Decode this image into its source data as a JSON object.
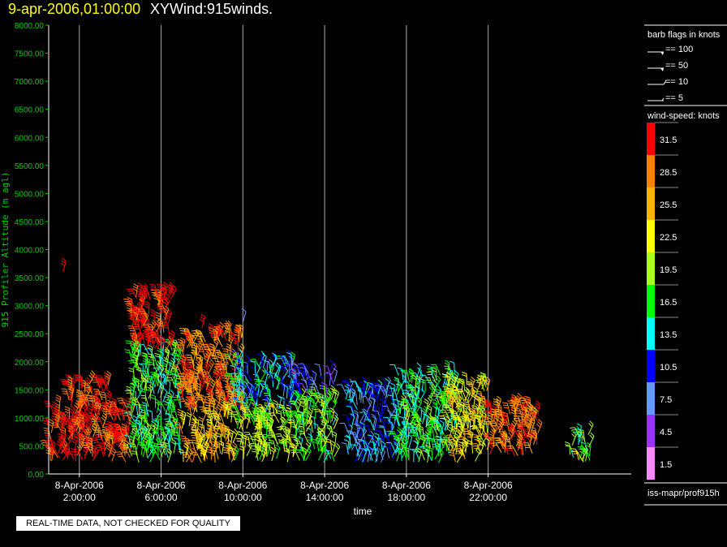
{
  "header": {
    "time": "9-apr-2006,01:00:00",
    "title": "XYWind:915winds."
  },
  "colors": {
    "axis": "#00cc00",
    "grid": "#aaaaaa",
    "background": "#000000"
  },
  "chart_data": {
    "type": "scatter",
    "title": "XYWind:915winds.",
    "xlabel": "time",
    "ylabel": "915 Profiler Altitude (m agl)",
    "ylim": [
      0,
      8000
    ],
    "yticks": [
      "0.00",
      "500.00",
      "1000.00",
      "1500.00",
      "2000.00",
      "2500.00",
      "3000.00",
      "3500.00",
      "4000.00",
      "4500.00",
      "5000.00",
      "5500.00",
      "6000.00",
      "6500.00",
      "7000.00",
      "7500.00",
      "8000.00"
    ],
    "xlim_hours": [
      0,
      30
    ],
    "xticks": [
      {
        "hour": 2,
        "date": "8-Apr-2006",
        "time": "2:00:00"
      },
      {
        "hour": 6,
        "date": "8-Apr-2006",
        "time": "6:00:00"
      },
      {
        "hour": 10,
        "date": "8-Apr-2006",
        "time": "10:00:00"
      },
      {
        "hour": 14,
        "date": "8-Apr-2006",
        "time": "14:00:00"
      },
      {
        "hour": 18,
        "date": "8-Apr-2006",
        "time": "18:00:00"
      },
      {
        "hour": 22,
        "date": "8-Apr-2006",
        "time": "22:00:00"
      }
    ],
    "grid": "vertical",
    "wind_clusters": [
      {
        "t_start": 0.5,
        "t_end": 2.5,
        "z_min": 200,
        "z_max": 1200,
        "speed": 31
      },
      {
        "t_start": 2.5,
        "t_end": 4.5,
        "z_min": 200,
        "z_max": 1200,
        "speed": 30
      },
      {
        "t_start": 1.5,
        "t_end": 3.5,
        "z_min": 1200,
        "z_max": 1600,
        "speed": 30
      },
      {
        "t_start": 4.5,
        "t_end": 7.0,
        "z_min": 200,
        "z_max": 2200,
        "speed": 17
      },
      {
        "t_start": 4.5,
        "t_end": 6.5,
        "z_min": 2200,
        "z_max": 3200,
        "speed": 31
      },
      {
        "t_start": 7.0,
        "t_end": 9.5,
        "z_min": 200,
        "z_max": 1100,
        "speed": 25
      },
      {
        "t_start": 7.0,
        "t_end": 10.0,
        "z_min": 1100,
        "z_max": 2500,
        "speed": 28
      },
      {
        "t_start": 9.5,
        "t_end": 12.5,
        "z_min": 200,
        "z_max": 1100,
        "speed": 20
      },
      {
        "t_start": 9.5,
        "t_end": 12.5,
        "z_min": 1100,
        "z_max": 2000,
        "speed": 12
      },
      {
        "t_start": 12.5,
        "t_end": 14.5,
        "z_min": 200,
        "z_max": 1400,
        "speed": 18
      },
      {
        "t_start": 12.5,
        "t_end": 14.5,
        "z_min": 1400,
        "z_max": 1800,
        "speed": 8
      },
      {
        "t_start": 15.0,
        "t_end": 17.5,
        "z_min": 200,
        "z_max": 1500,
        "speed": 10
      },
      {
        "t_start": 17.5,
        "t_end": 20.5,
        "z_min": 200,
        "z_max": 1800,
        "speed": 16
      },
      {
        "t_start": 20.0,
        "t_end": 22.0,
        "z_min": 200,
        "z_max": 1600,
        "speed": 23
      },
      {
        "t_start": 22.0,
        "t_end": 24.5,
        "z_min": 300,
        "z_max": 1200,
        "speed": 28
      },
      {
        "t_start": 26.0,
        "t_end": 27.0,
        "z_min": 200,
        "z_max": 700,
        "speed": 18
      }
    ],
    "sparse_barbs": [
      {
        "t": 1.2,
        "z": 3600,
        "speed": 31
      },
      {
        "t": 5.0,
        "z": 2900,
        "speed": 31
      },
      {
        "t": 8.0,
        "z": 2600,
        "speed": 30
      },
      {
        "t": 10.0,
        "z": 2700,
        "speed": 8
      },
      {
        "t": 11.0,
        "z": 1900,
        "speed": 14
      }
    ]
  },
  "legend": {
    "barb_title": "barb flags in knots",
    "barbs": [
      {
        "label": "== 100",
        "kind": "flag"
      },
      {
        "label": "== 50",
        "kind": "flag"
      },
      {
        "label": "== 10",
        "kind": "full"
      },
      {
        "label": "== 5",
        "kind": "half"
      }
    ],
    "speed_title": "wind-speed: knots",
    "speed_scale": [
      {
        "label": "31.5",
        "color": "#ff0000"
      },
      {
        "label": "28.5",
        "color": "#ff8000"
      },
      {
        "label": "25.5",
        "color": "#ffb000"
      },
      {
        "label": "22.5",
        "color": "#ffff00"
      },
      {
        "label": "19.5",
        "color": "#aaff22"
      },
      {
        "label": "16.5",
        "color": "#00ff00"
      },
      {
        "label": "13.5",
        "color": "#00ffff"
      },
      {
        "label": "10.5",
        "color": "#0000ff"
      },
      {
        "label": "7.5",
        "color": "#6699ff"
      },
      {
        "label": "4.5",
        "color": "#9933ff"
      },
      {
        "label": "1.5",
        "color": "#ff88ff"
      }
    ]
  },
  "footer": {
    "caption": "REAL-TIME DATA, NOT CHECKED FOR QUALITY",
    "source": "iss-mapr/prof915h"
  }
}
